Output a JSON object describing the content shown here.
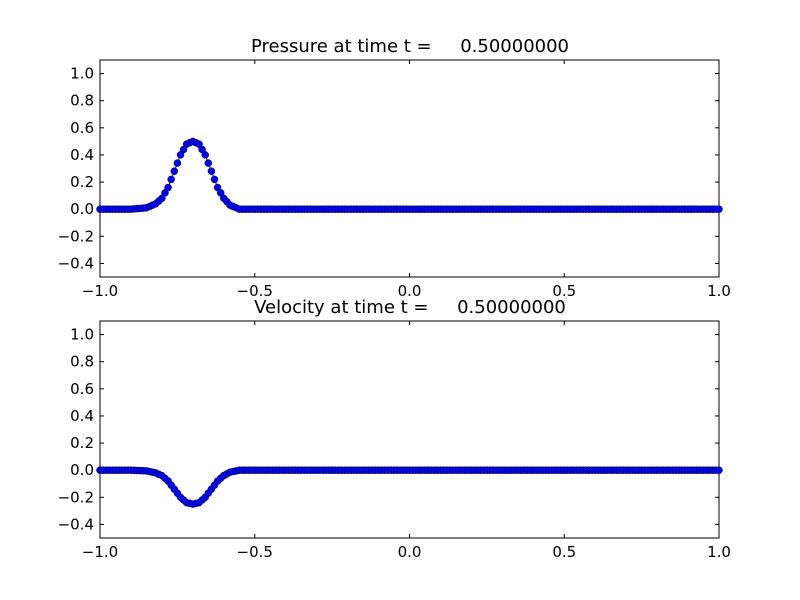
{
  "chart_data": [
    {
      "type": "line",
      "title": "Pressure at time t =     0.50000000",
      "xlim": [
        -1.0,
        1.0
      ],
      "ylim": [
        -0.5,
        1.1
      ],
      "xticks": [
        "−1.0",
        "−0.5",
        "0.0",
        "0.5",
        "1.0"
      ],
      "xtick_values": [
        -1.0,
        -0.5,
        0.0,
        0.5,
        1.0
      ],
      "yticks": [
        "−0.4",
        "−0.2",
        "0.0",
        "0.2",
        "0.4",
        "0.6",
        "0.8",
        "1.0"
      ],
      "ytick_values": [
        -0.4,
        -0.2,
        0.0,
        0.2,
        0.4,
        0.6,
        0.8,
        1.0
      ],
      "grid": false,
      "marker": "circle",
      "series": [
        {
          "color": "#0000ff",
          "x": [
            -1.0,
            -0.95,
            -0.9,
            -0.85,
            -0.82,
            -0.8,
            -0.78,
            -0.76,
            -0.74,
            -0.72,
            -0.7,
            -0.68,
            -0.66,
            -0.64,
            -0.62,
            -0.6,
            -0.58,
            -0.55,
            -0.5,
            -0.4,
            -0.2,
            0.0,
            0.2,
            0.4,
            0.6,
            0.8,
            1.0
          ],
          "y": [
            0.0,
            0.0,
            0.0,
            0.01,
            0.04,
            0.08,
            0.16,
            0.28,
            0.4,
            0.48,
            0.5,
            0.48,
            0.4,
            0.28,
            0.16,
            0.08,
            0.03,
            0.0,
            0.0,
            0.0,
            0.0,
            0.0,
            0.0,
            0.0,
            0.0,
            0.0,
            0.0
          ]
        }
      ]
    },
    {
      "type": "line",
      "title": "Velocity at time t =     0.50000000",
      "xlim": [
        -1.0,
        1.0
      ],
      "ylim": [
        -0.5,
        1.1
      ],
      "xticks": [
        "−1.0",
        "−0.5",
        "0.0",
        "0.5",
        "1.0"
      ],
      "xtick_values": [
        -1.0,
        -0.5,
        0.0,
        0.5,
        1.0
      ],
      "yticks": [
        "−0.4",
        "−0.2",
        "0.0",
        "0.2",
        "0.4",
        "0.6",
        "0.8",
        "1.0"
      ],
      "ytick_values": [
        -0.4,
        -0.2,
        0.0,
        0.2,
        0.4,
        0.6,
        0.8,
        1.0
      ],
      "grid": false,
      "marker": "circle",
      "series": [
        {
          "color": "#0000ff",
          "x": [
            -1.0,
            -0.95,
            -0.9,
            -0.85,
            -0.82,
            -0.8,
            -0.78,
            -0.76,
            -0.74,
            -0.72,
            -0.7,
            -0.68,
            -0.66,
            -0.64,
            -0.62,
            -0.6,
            -0.58,
            -0.55,
            -0.5,
            -0.4,
            -0.2,
            0.0,
            0.2,
            0.4,
            0.6,
            0.8,
            1.0
          ],
          "y": [
            0.0,
            0.0,
            0.0,
            -0.005,
            -0.02,
            -0.04,
            -0.08,
            -0.14,
            -0.2,
            -0.24,
            -0.25,
            -0.24,
            -0.2,
            -0.14,
            -0.08,
            -0.04,
            -0.015,
            0.0,
            0.0,
            0.0,
            0.0,
            0.0,
            0.0,
            0.0,
            0.0,
            0.0,
            0.0
          ]
        }
      ]
    }
  ]
}
